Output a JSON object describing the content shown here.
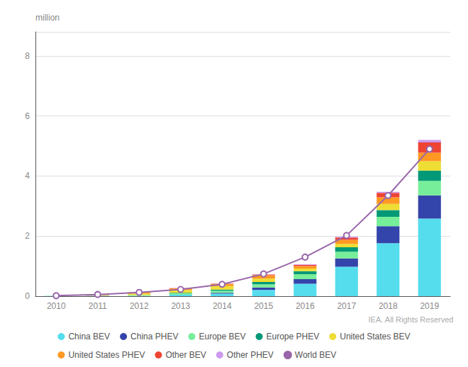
{
  "chart_data": {
    "type": "bar",
    "stacked": true,
    "categories": [
      "2010",
      "2011",
      "2012",
      "2013",
      "2014",
      "2015",
      "2016",
      "2017",
      "2018",
      "2019"
    ],
    "series": [
      {
        "name": "China BEV",
        "color": "#55DDEE",
        "values": [
          0.006,
          0.008,
          0.012,
          0.048,
          0.083,
          0.207,
          0.41,
          0.979,
          1.761,
          2.582
        ]
      },
      {
        "name": "China PHEV",
        "color": "#3344AA",
        "values": [
          0.0,
          0.001,
          0.001,
          0.006,
          0.031,
          0.082,
          0.157,
          0.275,
          0.571,
          0.776
        ]
      },
      {
        "name": "Europe BEV",
        "color": "#77EE99",
        "values": [
          0.003,
          0.01,
          0.021,
          0.043,
          0.067,
          0.106,
          0.163,
          0.228,
          0.31,
          0.481
        ]
      },
      {
        "name": "Europe PHEV",
        "color": "#009977",
        "values": [
          0.0,
          0.001,
          0.003,
          0.013,
          0.039,
          0.074,
          0.102,
          0.146,
          0.222,
          0.341
        ]
      },
      {
        "name": "United States BEV",
        "color": "#EEDD33",
        "values": [
          0.001,
          0.011,
          0.05,
          0.099,
          0.119,
          0.113,
          0.086,
          0.113,
          0.211,
          0.317
        ]
      },
      {
        "name": "United States PHEV",
        "color": "#FF9922",
        "values": [
          0.0,
          0.01,
          0.038,
          0.051,
          0.068,
          0.114,
          0.086,
          0.134,
          0.215,
          0.28
        ]
      },
      {
        "name": "Other BEV",
        "color": "#EE4433",
        "values": [
          0.0,
          0.001,
          0.003,
          0.006,
          0.01,
          0.022,
          0.042,
          0.076,
          0.148,
          0.34
        ]
      },
      {
        "name": "Other PHEV",
        "color": "#CC99EE",
        "values": [
          0.0,
          0.0,
          0.001,
          0.003,
          0.006,
          0.009,
          0.015,
          0.022,
          0.038,
          0.085
        ]
      },
      {
        "name": "World BEV",
        "color": "#9966AA",
        "type": "line",
        "marker": "circle",
        "values": [
          0.015,
          0.055,
          0.125,
          0.225,
          0.395,
          0.74,
          1.3,
          2.02,
          3.35,
          4.9
        ]
      }
    ],
    "ylabel": "million",
    "annotations": [
      "IEA. All Rights Reserved"
    ],
    "ylim": [
      0,
      8.8
    ],
    "yticks": [
      0,
      2,
      4,
      6,
      8
    ],
    "grid": true,
    "legend": "bottom"
  }
}
